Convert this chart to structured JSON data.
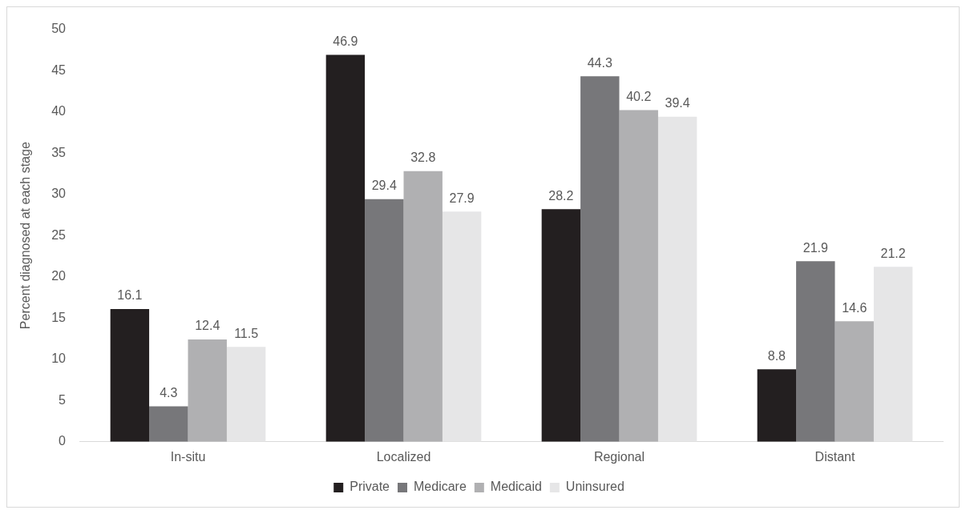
{
  "chart_data": {
    "type": "bar",
    "ylabel": "Percent diagnosed at each stage",
    "categories": [
      "In-situ",
      "Localized",
      "Regional",
      "Distant"
    ],
    "series": [
      {
        "name": "Private",
        "color": "#231f20",
        "values": [
          16.1,
          46.9,
          28.2,
          8.8
        ]
      },
      {
        "name": "Medicare",
        "color": "#77777a",
        "values": [
          4.3,
          29.4,
          44.3,
          21.9
        ]
      },
      {
        "name": "Medicaid",
        "color": "#b0b0b2",
        "values": [
          12.4,
          32.8,
          40.2,
          14.6
        ]
      },
      {
        "name": "Uninsured",
        "color": "#e6e6e7",
        "values": [
          11.5,
          27.9,
          39.4,
          21.2
        ]
      }
    ],
    "ylim": [
      0,
      50
    ],
    "yticks": [
      0,
      5,
      10,
      15,
      20,
      25,
      30,
      35,
      40,
      45,
      50
    ],
    "grid": false,
    "legend": "bottom",
    "data_labels": true
  }
}
